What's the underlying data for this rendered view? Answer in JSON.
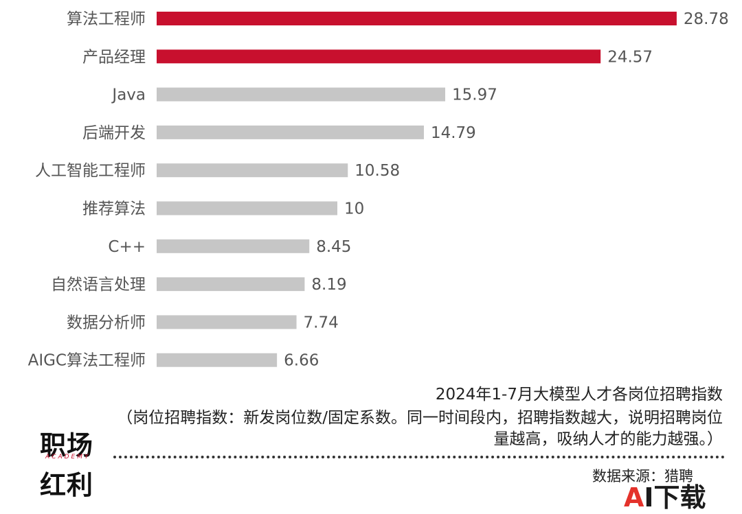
{
  "chart_data": {
    "type": "bar",
    "orientation": "horizontal",
    "title": "2024年1-7月大模型人才各岗位招聘指数",
    "note": "（岗位招聘指数：新发岗位数/固定系数。同一时间段内，招聘指数越大，说明招聘岗位量越高，吸纳人才的能力越强。）",
    "categories": [
      "算法工程师",
      "产品经理",
      "Java",
      "后端开发",
      "人工智能工程师",
      "推荐算法",
      "C++",
      "自然语言处理",
      "数据分析师",
      "AIGC算法工程师"
    ],
    "values": [
      28.78,
      24.57,
      15.97,
      14.79,
      10.58,
      10,
      8.45,
      8.19,
      7.74,
      6.66
    ],
    "value_labels": [
      "28.78",
      "24.57",
      "15.97",
      "14.79",
      "10.58",
      "10",
      "8.45",
      "8.19",
      "7.74",
      "6.66"
    ],
    "highlight_count": 2,
    "colors": {
      "highlight": "#c8102e",
      "normal": "#c6c6c6",
      "label": "#555555"
    },
    "xlim": [
      0,
      30
    ],
    "grid": false,
    "legend": "none"
  },
  "source_text": "数据来源：猎聘",
  "logo": {
    "line1": "职场",
    "sub": "ACADEMY",
    "line2": "红利"
  },
  "watermark": {
    "a": "A",
    "rest": "I下载"
  }
}
